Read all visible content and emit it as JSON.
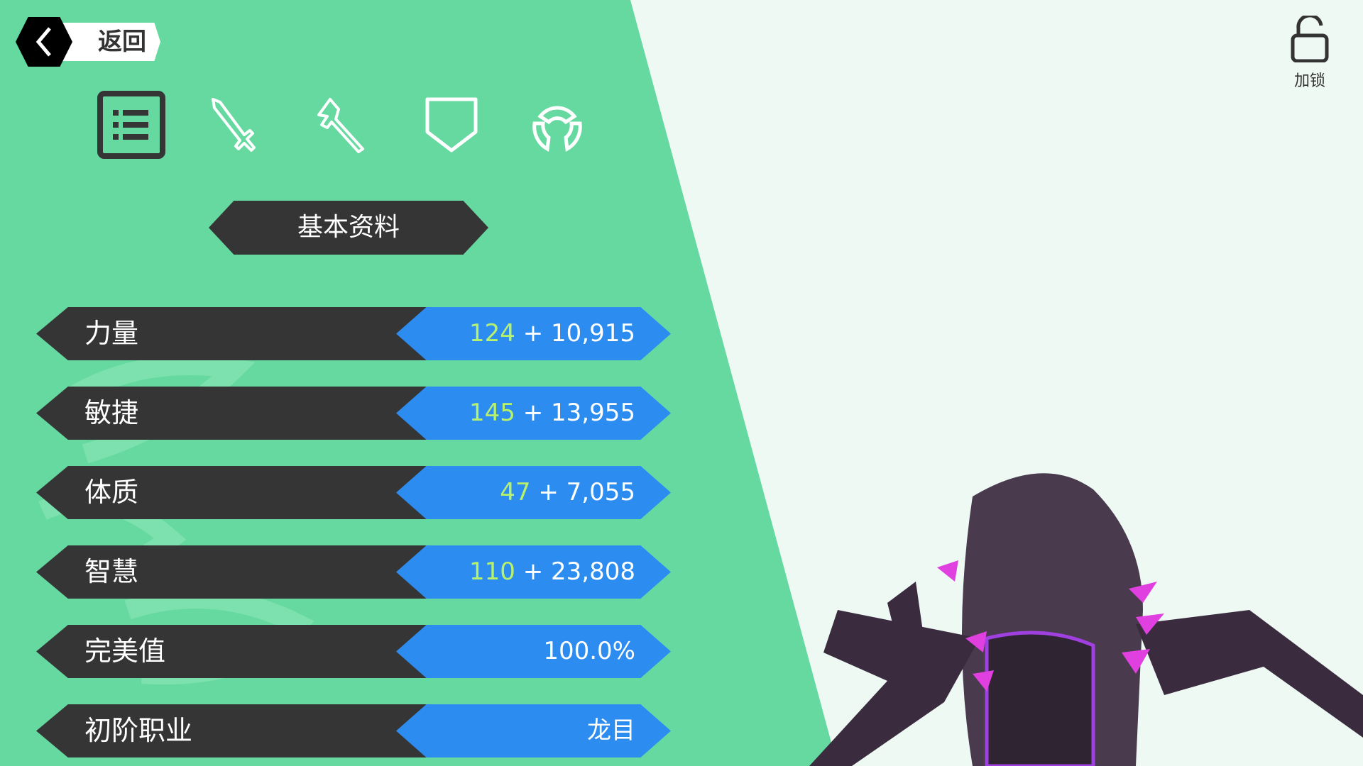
{
  "back_button": {
    "label": "返回"
  },
  "tabs": [
    {
      "icon": "list-icon",
      "active": true
    },
    {
      "icon": "sword-icon"
    },
    {
      "icon": "hammer-icon"
    },
    {
      "icon": "shield-icon"
    },
    {
      "icon": "ring-icon"
    }
  ],
  "section_title": "基本资料",
  "stats": [
    {
      "name": "力量",
      "base": "124",
      "bonus": "+ 10,915"
    },
    {
      "name": "敏捷",
      "base": "145",
      "bonus": "+ 13,955"
    },
    {
      "name": "体质",
      "base": "47",
      "bonus": "+ 7,055"
    },
    {
      "name": "智慧",
      "base": "110",
      "bonus": "+ 23,808"
    },
    {
      "name": "完美值",
      "base": "",
      "bonus": "100.0%"
    },
    {
      "name": "初阶职业",
      "base": "",
      "bonus": "龙目"
    }
  ],
  "lock": {
    "label": "加锁",
    "icon": "unlock-icon"
  },
  "colors": {
    "panel": "#66d9a0",
    "dark": "#353535",
    "blue": "#2d8cf0",
    "base_value": "#b8f26c",
    "background": "#eef9f4"
  }
}
